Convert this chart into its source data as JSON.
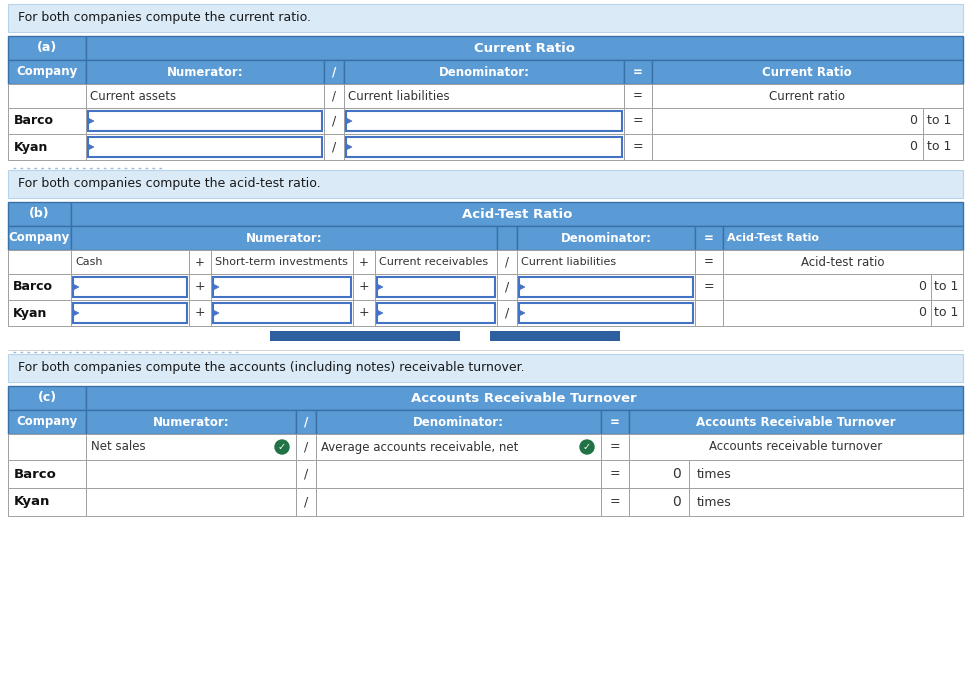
{
  "header1": "For both companies compute the current ratio.",
  "header2": "For both companies compute the acid-test ratio.",
  "header3": "For both companies compute the accounts (including notes) receivable turnover.",
  "section_a_label": "(a)",
  "section_a_title": "Current Ratio",
  "section_b_label": "(b)",
  "section_b_title": "Acid-Test Ratio",
  "section_c_label": "(c)",
  "section_c_title": "Accounts Receivable Turnover",
  "companies": [
    "Barco",
    "Kyan"
  ],
  "col_company": "Company",
  "col_numerator": "Numerator:",
  "col_denominator": "Denominator:",
  "col_slash": "/",
  "col_equals": "=",
  "col_current_ratio": "Current Ratio",
  "col_acid_test": "Acid-Test Ratio",
  "col_ar_turnover": "Accounts Receivable Turnover",
  "hint_current_assets": "Current assets",
  "hint_current_liabilities": "Current liabilities",
  "hint_current_ratio": "Current ratio",
  "hint_cash": "Cash",
  "hint_sti": "Short-term investments",
  "hint_cr": "Current receivables",
  "hint_cl": "Current liabilities",
  "hint_acid_test": "Acid-test ratio",
  "hint_net_sales": "Net sales",
  "hint_avg_ar": "Average accounts receivable, net",
  "hint_ar_turnover": "Accounts receivable turnover",
  "header_bg": "#daeaf7",
  "table_header_bg": "#5b9bd5",
  "border_color": "#a0a0a0",
  "input_border": "#4472c4",
  "text_dark": "#1a1a1a",
  "scroll_bar_color": "#2e5f9e",
  "green_check_color": "#217346",
  "times_text": "times",
  "fig_bg": "#ffffff",
  "outer_bg": "#e8e8e8"
}
